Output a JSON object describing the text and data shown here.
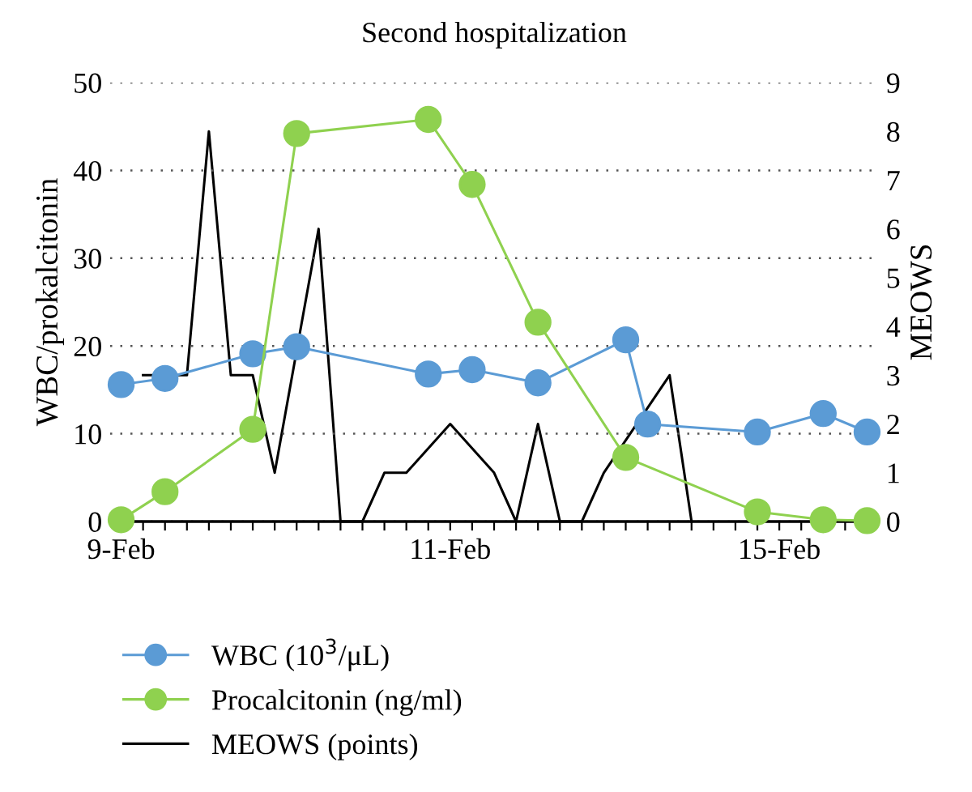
{
  "chart_data": {
    "type": "line",
    "title": "Second hospitalization",
    "ylabel": "WBC/prokalcitonin",
    "y2label": "MEOWS",
    "categories": [
      "9-Feb",
      null,
      null,
      null,
      null,
      null,
      null,
      null,
      null,
      null,
      null,
      null,
      null,
      null,
      null,
      "11-Feb",
      null,
      null,
      null,
      null,
      null,
      null,
      null,
      null,
      null,
      null,
      null,
      null,
      null,
      null,
      "15-Feb",
      null,
      null,
      null,
      null
    ],
    "ylim": [
      0,
      50
    ],
    "yticks": [
      0,
      10,
      20,
      30,
      40,
      50
    ],
    "y2lim": [
      0,
      9
    ],
    "y2ticks": [
      0,
      1,
      2,
      3,
      4,
      5,
      6,
      7,
      8,
      9
    ],
    "grid": "y",
    "legend": "bottom",
    "series": [
      {
        "name": "WBC (10$^{3}$/μL)",
        "color": "#5b9bd5",
        "marker": "circle",
        "values": [
          15.6,
          null,
          16.3,
          null,
          null,
          null,
          19.1,
          null,
          19.9,
          null,
          null,
          null,
          null,
          null,
          16.8,
          null,
          17.3,
          null,
          null,
          15.8,
          null,
          null,
          null,
          20.7,
          11.1,
          null,
          null,
          null,
          null,
          10.2,
          null,
          null,
          12.3,
          null,
          10.2
        ]
      },
      {
        "name": "Procalcitonin (ng/ml)",
        "color": "#8fd14f",
        "marker": "circle",
        "values": [
          0.2,
          null,
          3.4,
          null,
          null,
          null,
          10.5,
          null,
          44.2,
          null,
          null,
          null,
          null,
          null,
          45.8,
          null,
          38.4,
          null,
          null,
          22.7,
          null,
          null,
          null,
          7.3,
          null,
          null,
          null,
          null,
          null,
          1.1,
          null,
          null,
          0.2,
          null,
          0.1
        ]
      },
      {
        "name": "MEOWS (points)",
        "color": "#000000",
        "marker": "none",
        "axis": "y2",
        "values": [
          null,
          3,
          null,
          3,
          8,
          3,
          3,
          1,
          null,
          6,
          0,
          0,
          1,
          1,
          null,
          2,
          null,
          1,
          0,
          2,
          0,
          0,
          1,
          null,
          null,
          3,
          0,
          null,
          null,
          null,
          null,
          null,
          null,
          null,
          null
        ]
      }
    ]
  }
}
